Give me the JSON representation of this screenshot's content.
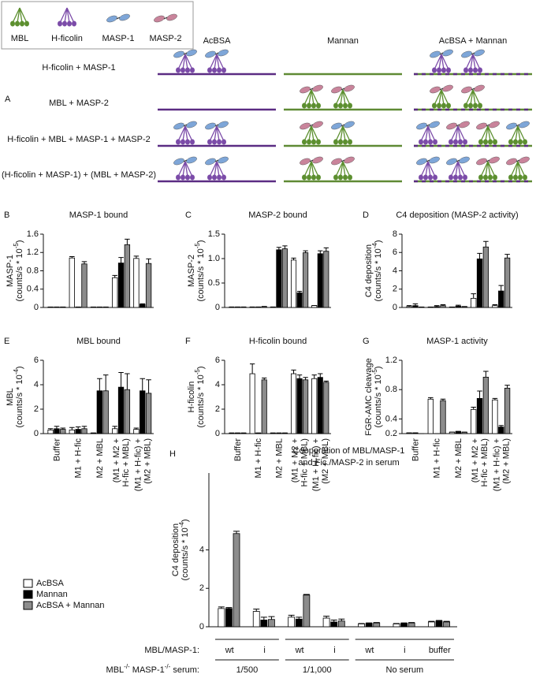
{
  "molecule_legend": [
    "MBL",
    "H-ficolin",
    "MASP-1",
    "MASP-2"
  ],
  "panel_a": {
    "letter": "A",
    "columns": [
      "AcBSA",
      "Mannan",
      "AcBSA + Mannan"
    ],
    "rows": [
      "H-ficolin + MASP-1",
      "MBL + MASP-2",
      "H-ficolin + MBL + MASP-1 + MASP-2",
      "(H-ficolin + MASP-1) + (MBL + MASP-2)"
    ]
  },
  "legend": [
    {
      "name": "AcBSA",
      "color": "#ffffff"
    },
    {
      "name": "Mannan",
      "color": "#000000"
    },
    {
      "name": "AcBSA + Mannan",
      "color": "#8c8c8c"
    }
  ],
  "chart_data": [
    {
      "type": "bar",
      "panel": "B",
      "title": "MASP-1 bound",
      "ylabel": [
        [
          "MASP-1"
        ],
        [
          "(counts/s * 10",
          "-5",
          ")"
        ]
      ],
      "ylim": [
        0,
        1.6
      ],
      "yticks": [
        0,
        0.4,
        0.8,
        1.2,
        1.6
      ],
      "values": [
        [
          0.01,
          0.01,
          0.01
        ],
        [
          1.08,
          0.01,
          0.95
        ],
        [
          0.01,
          0.01,
          0.01
        ],
        [
          0.65,
          0.97,
          1.37
        ],
        [
          1.07,
          0.07,
          0.96
        ]
      ],
      "errors": [
        [
          0,
          0,
          0
        ],
        [
          0.03,
          0,
          0.05
        ],
        [
          0,
          0,
          0
        ],
        [
          0.05,
          0.12,
          0.12
        ],
        [
          0.05,
          0.01,
          0.1
        ]
      ]
    },
    {
      "type": "bar",
      "panel": "C",
      "title": "MASP-2 bound",
      "ylabel": [
        [
          "MASP-2"
        ],
        [
          "(counts/s * 10",
          "-5",
          ")"
        ]
      ],
      "ylim": [
        0,
        1.5
      ],
      "yticks": [
        0,
        0.5,
        {
          "value": 1,
          "label": "1.0"
        },
        1.5
      ],
      "values": [
        [
          0.01,
          0.01,
          0.01
        ],
        [
          0.01,
          0.01,
          0.02
        ],
        [
          0.01,
          1.18,
          1.2
        ],
        [
          0.97,
          0.3,
          1.12
        ],
        [
          0.04,
          1.1,
          1.15
        ]
      ],
      "errors": [
        [
          0,
          0,
          0
        ],
        [
          0,
          0,
          0
        ],
        [
          0,
          0.05,
          0.06
        ],
        [
          0.04,
          0.03,
          0.04
        ],
        [
          0,
          0.06,
          0.07
        ]
      ]
    },
    {
      "type": "bar",
      "panel": "D",
      "title": "C4 deposition (MASP-2 activity)",
      "ylabel": [
        [
          "C4 deposition"
        ],
        [
          "(counts/s * 10",
          "-4",
          ")"
        ]
      ],
      "ylim": [
        0,
        8
      ],
      "yticks": [
        0,
        2,
        4,
        6,
        8
      ],
      "values": [
        [
          0.1,
          0.2,
          0.05
        ],
        [
          0.05,
          0.1,
          0.2
        ],
        [
          0.05,
          0.15,
          0.1
        ],
        [
          1.0,
          5.3,
          6.6
        ],
        [
          0.2,
          1.8,
          5.4
        ]
      ],
      "errors": [
        [
          0.1,
          0.2,
          0
        ],
        [
          0,
          0.1,
          0.1
        ],
        [
          0,
          0.1,
          0
        ],
        [
          0.5,
          0.6,
          0.6
        ],
        [
          0.1,
          0.6,
          0.4
        ]
      ]
    },
    {
      "type": "bar",
      "panel": "E",
      "title": "MBL bound",
      "ylabel": [
        [
          "MBL"
        ],
        [
          "(counts/s * 10",
          "-4",
          ")"
        ]
      ],
      "ylim": [
        0,
        6
      ],
      "yticks": [
        0,
        2,
        4,
        6
      ],
      "categories": [
        [
          "Buffer"
        ],
        [
          "M1 + H-fic"
        ],
        [
          "M2 + MBL"
        ],
        [
          "(M1 + M2 +",
          "H-fic + MBL)"
        ],
        [
          "(M1 + H-fic) +",
          "(M2 + MBL)"
        ]
      ],
      "values": [
        [
          0.3,
          0.4,
          0.35
        ],
        [
          0.3,
          0.35,
          0.4
        ],
        [
          0.05,
          3.5,
          3.5
        ],
        [
          0.4,
          3.8,
          3.6
        ],
        [
          0.35,
          3.5,
          3.3
        ]
      ],
      "errors": [
        [
          0.1,
          0.2,
          0.1
        ],
        [
          0.2,
          0.2,
          0.2
        ],
        [
          0,
          1.0,
          1.3
        ],
        [
          0.2,
          1.2,
          1.3
        ],
        [
          0.1,
          1.0,
          1.1
        ]
      ]
    },
    {
      "type": "bar",
      "panel": "F",
      "title": "H-ficolin bound",
      "ylabel": [
        [
          "H-ficolin"
        ],
        [
          "(counts/s * 10",
          "-5",
          ")"
        ]
      ],
      "ylim": [
        0,
        6
      ],
      "yticks": [
        0,
        2,
        4,
        6
      ],
      "categories": [
        [
          "Buffer"
        ],
        [
          "M1 + H-fic"
        ],
        [
          "M2 + MBL"
        ],
        [
          "(M1 + M2 +",
          "H-fic + MBL)"
        ],
        [
          "(M1 + H-fic) +",
          "(M2 + MBL)"
        ]
      ],
      "values": [
        [
          0.05,
          0.05,
          0.05
        ],
        [
          4.9,
          0.05,
          4.4
        ],
        [
          0.05,
          0.05,
          0.05
        ],
        [
          4.9,
          4.5,
          4.4
        ],
        [
          4.5,
          4.6,
          4.2
        ]
      ],
      "errors": [
        [
          0,
          0,
          0
        ],
        [
          0.8,
          0,
          0.15
        ],
        [
          0,
          0,
          0
        ],
        [
          0.3,
          0.3,
          0.2
        ],
        [
          0.3,
          0.3,
          0.1
        ]
      ]
    },
    {
      "type": "bar",
      "panel": "G",
      "title": "MASP-1 activity",
      "ylabel": [
        [
          "FGR-AMC cleavage"
        ],
        [
          "(counts/s * 10",
          "-5",
          ")"
        ]
      ],
      "ylim": [
        0.2,
        1.2
      ],
      "yticks": [
        0.2,
        0.4,
        0.8,
        1.2
      ],
      "categories": [
        [
          "Buffer"
        ],
        [
          "M1 + H-fic"
        ],
        [
          "M2 + MBL"
        ],
        [
          "(M1 + M2 +",
          "H-fic + MBL)"
        ],
        [
          "(M1 + H-fic) +",
          "(M2 + MBL)"
        ]
      ],
      "values": [
        [
          0.21,
          0.21,
          0.2
        ],
        [
          0.67,
          0.2,
          0.65
        ],
        [
          0.22,
          0.23,
          0.22
        ],
        [
          0.53,
          0.68,
          0.97
        ],
        [
          0.66,
          0.29,
          0.82
        ]
      ],
      "errors": [
        [
          0,
          0,
          0
        ],
        [
          0.02,
          0,
          0.02
        ],
        [
          0,
          0,
          0
        ],
        [
          0.03,
          0.1,
          0.08
        ],
        [
          0.02,
          0.02,
          0.04
        ]
      ]
    },
    {
      "type": "bar",
      "panel": "H",
      "title": [
        "Cooperation of MBL/MASP-1",
        "and Fic./MASP-2 in serum"
      ],
      "ylabel": [
        [
          "C4 deposition"
        ],
        [
          "(counts/s * 10",
          "-4",
          ")"
        ]
      ],
      "ylim": [
        0,
        8
      ],
      "yticks": [
        0,
        2,
        4
      ],
      "category_label": "MBL/MASP-1:",
      "group_label": [
        "MBL",
        "-/-",
        " MASP-1",
        "-/-",
        " serum:"
      ],
      "groups": [
        {
          "label": "1/500",
          "categories": [
            "wt",
            "i"
          ]
        },
        {
          "label": "1/1,000",
          "categories": [
            "wt",
            "i"
          ]
        },
        {
          "label": "No serum",
          "categories": [
            "wt",
            "i",
            "buffer"
          ]
        }
      ],
      "values": [
        [
          0.95,
          0.95,
          4.85
        ],
        [
          0.8,
          0.35,
          0.38
        ],
        [
          0.5,
          0.4,
          1.65
        ],
        [
          0.45,
          0.25,
          0.3
        ],
        [
          0.15,
          0.18,
          0.2
        ],
        [
          0.15,
          0.18,
          0.2
        ],
        [
          0.25,
          0.3,
          0.25
        ]
      ],
      "errors": [
        [
          0.08,
          0.05,
          0.12
        ],
        [
          0.12,
          0.15,
          0.15
        ],
        [
          0.1,
          0.1,
          0.03
        ],
        [
          0.1,
          0.1,
          0.1
        ],
        [
          0.02,
          0.02,
          0.02
        ],
        [
          0.02,
          0.02,
          0.02
        ],
        [
          0.03,
          0.03,
          0.03
        ]
      ]
    }
  ]
}
